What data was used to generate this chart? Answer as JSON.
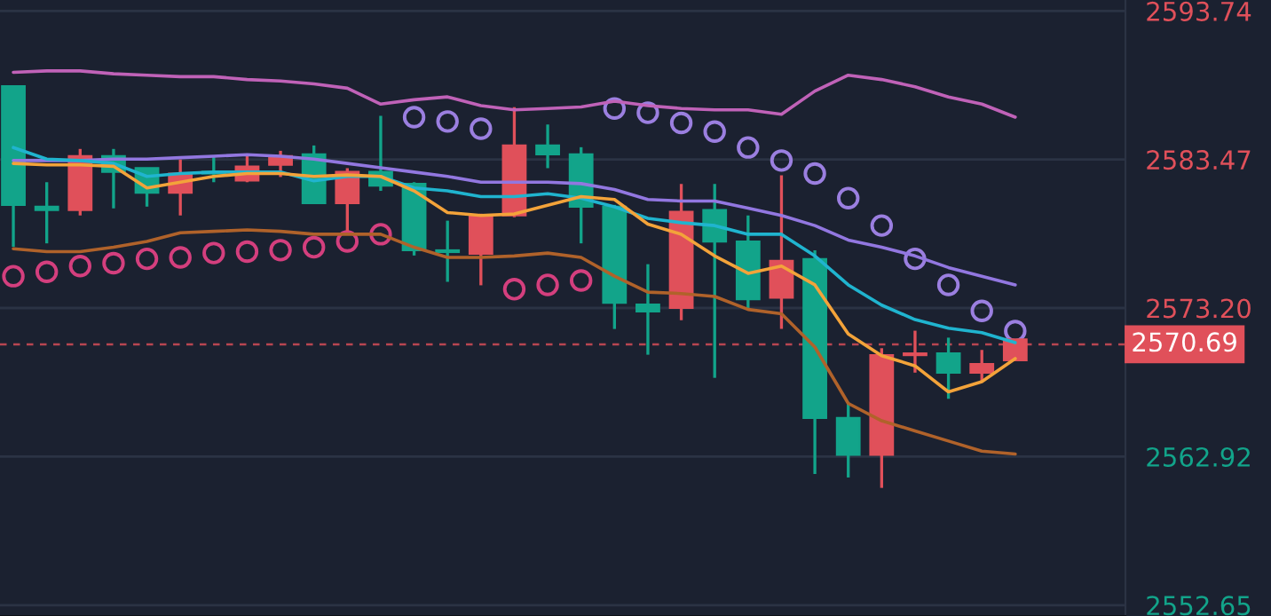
{
  "chart_data": {
    "type": "candlestick",
    "categories": [
      null,
      null,
      null,
      null,
      null,
      null,
      null,
      null,
      null,
      null,
      null,
      null,
      null,
      null,
      null,
      null,
      null,
      null,
      null,
      null,
      null,
      null,
      null,
      null,
      null,
      null,
      null,
      null,
      null,
      null,
      null
    ],
    "ohlc": [
      [
        2580.33,
        2588.54,
        2577.43,
        2588.54
      ],
      [
        2579.97,
        2581.9,
        2577.67,
        2580.21
      ],
      [
        2583.71,
        2584.2,
        2579.6,
        2579.97
      ],
      [
        2582.62,
        2584.2,
        2580.09,
        2583.71
      ],
      [
        2581.17,
        2582.87,
        2580.21,
        2582.87
      ],
      [
        2582.5,
        2583.47,
        2579.6,
        2581.17
      ],
      [
        2582.5,
        2583.71,
        2581.9,
        2582.62
      ],
      [
        2582.99,
        2583.83,
        2581.9,
        2582.02
      ],
      [
        2583.71,
        2584.07,
        2582.26,
        2583.11
      ],
      [
        2580.45,
        2584.44,
        2580.45,
        2583.83
      ],
      [
        2582.62,
        2582.87,
        2578.52,
        2580.45
      ],
      [
        2581.66,
        2586.49,
        2581.3,
        2582.62
      ],
      [
        2577.19,
        2581.9,
        2576.83,
        2581.78
      ],
      [
        2577.07,
        2579.24,
        2575.01,
        2577.19
      ],
      [
        2579.6,
        2579.72,
        2574.77,
        2576.95
      ],
      [
        2584.44,
        2587.09,
        2579.48,
        2579.6
      ],
      [
        2583.83,
        2585.89,
        2582.87,
        2584.44
      ],
      [
        2580.21,
        2584.32,
        2577.67,
        2583.83
      ],
      [
        2573.56,
        2580.33,
        2571.75,
        2580.21
      ],
      [
        2572.96,
        2576.23,
        2569.97,
        2573.44
      ],
      [
        2579.85,
        2581.78,
        2572.35,
        2573.2
      ],
      [
        2577.79,
        2581.78,
        2568.37,
        2579.97
      ],
      [
        2573.8,
        2579.6,
        2573.2,
        2577.79
      ],
      [
        2576.46,
        2582.38,
        2571.75,
        2573.92
      ],
      [
        2565.59,
        2577.19,
        2561.72,
        2576.58
      ],
      [
        2563.05,
        2566.68,
        2561.48,
        2565.59
      ],
      [
        2569.94,
        2570.42,
        2560.76,
        2563.05
      ],
      [
        2570.06,
        2571.63,
        2568.73,
        2569.94
      ],
      [
        2568.73,
        2571.15,
        2566.92,
        2570.06
      ],
      [
        2569.33,
        2570.3,
        2568.12,
        2568.73
      ],
      [
        2571.03,
        2571.03,
        2569.58,
        2569.58
      ]
    ],
    "colors": [
      "#12a48a",
      "#12a48a",
      "#e0505a",
      "#12a48a",
      "#12a48a",
      "#e0505a",
      "#12a48a",
      "#e0505a",
      "#e0505a",
      "#12a48a",
      "#e0505a",
      "#12a48a",
      "#12a48a",
      "#12a48a",
      "#e0505a",
      "#e0505a",
      "#12a48a",
      "#12a48a",
      "#12a48a",
      "#12a48a",
      "#e0505a",
      "#12a48a",
      "#12a48a",
      "#e0505a",
      "#12a48a",
      "#12a48a",
      "#e0505a",
      "#e0505a",
      "#12a48a",
      "#e0505a",
      "#e0505a"
    ],
    "series": [
      {
        "type": "line",
        "color": "#c062b8",
        "values": [
          2589.5,
          2589.6,
          2589.6,
          2589.4,
          2589.3,
          2589.2,
          2589.2,
          2589.0,
          2588.9,
          2588.7,
          2588.4,
          2587.3,
          2587.6,
          2587.8,
          2587.2,
          2586.9,
          2587.0,
          2587.1,
          2587.5,
          2587.2,
          2587.0,
          2586.9,
          2586.9,
          2586.6,
          2588.2,
          2589.3,
          2589.0,
          2588.5,
          2587.8,
          2587.3,
          2586.4
        ]
      },
      {
        "type": "line",
        "color": "#9277e0",
        "values": [
          2583.4,
          2583.4,
          2583.4,
          2583.5,
          2583.5,
          2583.6,
          2583.7,
          2583.8,
          2583.7,
          2583.5,
          2583.2,
          2582.9,
          2582.6,
          2582.3,
          2581.9,
          2581.9,
          2581.9,
          2581.8,
          2581.4,
          2580.7,
          2580.6,
          2580.6,
          2580.1,
          2579.6,
          2578.9,
          2577.9,
          2577.4,
          2576.8,
          2576.0,
          2575.4,
          2574.8
        ]
      },
      {
        "type": "line",
        "color": "#b0622a",
        "values": [
          2577.3,
          2577.1,
          2577.1,
          2577.4,
          2577.8,
          2578.4,
          2578.5,
          2578.6,
          2578.5,
          2578.3,
          2578.3,
          2578.3,
          2577.4,
          2576.7,
          2576.7,
          2576.8,
          2577.0,
          2576.7,
          2575.4,
          2574.3,
          2574.2,
          2574.0,
          2573.1,
          2572.8,
          2570.5,
          2566.6,
          2565.4,
          2564.7,
          2564.0,
          2563.3,
          2563.1
        ]
      },
      {
        "type": "line",
        "color": "#20b4cf",
        "values": [
          2584.3,
          2583.5,
          2583.4,
          2583.2,
          2582.3,
          2582.5,
          2582.6,
          2582.6,
          2582.6,
          2582.0,
          2582.3,
          2582.3,
          2581.5,
          2581.3,
          2580.9,
          2580.9,
          2581.1,
          2580.8,
          2580.2,
          2579.4,
          2579.1,
          2578.9,
          2578.3,
          2578.3,
          2576.8,
          2574.8,
          2573.4,
          2572.4,
          2571.8,
          2571.5,
          2570.8
        ]
      },
      {
        "type": "line",
        "color": "#f3a33a",
        "values": [
          2583.2,
          2583.1,
          2583.1,
          2583.0,
          2581.5,
          2581.9,
          2582.3,
          2582.5,
          2582.5,
          2582.3,
          2582.4,
          2582.3,
          2581.3,
          2579.8,
          2579.6,
          2579.7,
          2580.3,
          2580.9,
          2580.7,
          2579.0,
          2578.3,
          2576.8,
          2575.6,
          2576.1,
          2574.8,
          2571.4,
          2569.9,
          2569.2,
          2567.4,
          2568.1,
          2569.7
        ]
      },
      {
        "type": "scatter",
        "marker": "circle",
        "color": "#9b7fe0",
        "values": [
          null,
          null,
          null,
          null,
          null,
          null,
          null,
          null,
          null,
          null,
          null,
          null,
          2586.4,
          2586.1,
          2585.6,
          null,
          null,
          null,
          2587.0,
          2586.7,
          2586.0,
          2585.4,
          2584.3,
          2583.4,
          2582.5,
          2580.8,
          2578.9,
          2576.6,
          2574.8,
          2573.0,
          2571.6
        ]
      },
      {
        "type": "scatter",
        "marker": "circle",
        "color": "#d43f7e",
        "values": [
          2575.4,
          2575.7,
          2576.1,
          2576.3,
          2576.6,
          2576.7,
          2577.0,
          2577.1,
          2577.2,
          2577.4,
          2577.8,
          2578.3,
          null,
          null,
          null,
          2574.5,
          2574.8,
          2575.1,
          null,
          null,
          null,
          null,
          null,
          null,
          null,
          null,
          null,
          null,
          null,
          null,
          null
        ]
      }
    ],
    "ylim": [
      2551.9,
      2594.5
    ],
    "yticks": [
      2593.74,
      2583.47,
      {
        "value": 2573.2,
        "label": "2573.20"
      },
      2562.92,
      2552.65
    ],
    "ref_lines": [
      {
        "axis": "y",
        "value": 2570.69,
        "label": "2570.69",
        "color": "#e0505a",
        "line_style": "dashed"
      }
    ],
    "grid": "y",
    "tick_labels": "y"
  }
}
